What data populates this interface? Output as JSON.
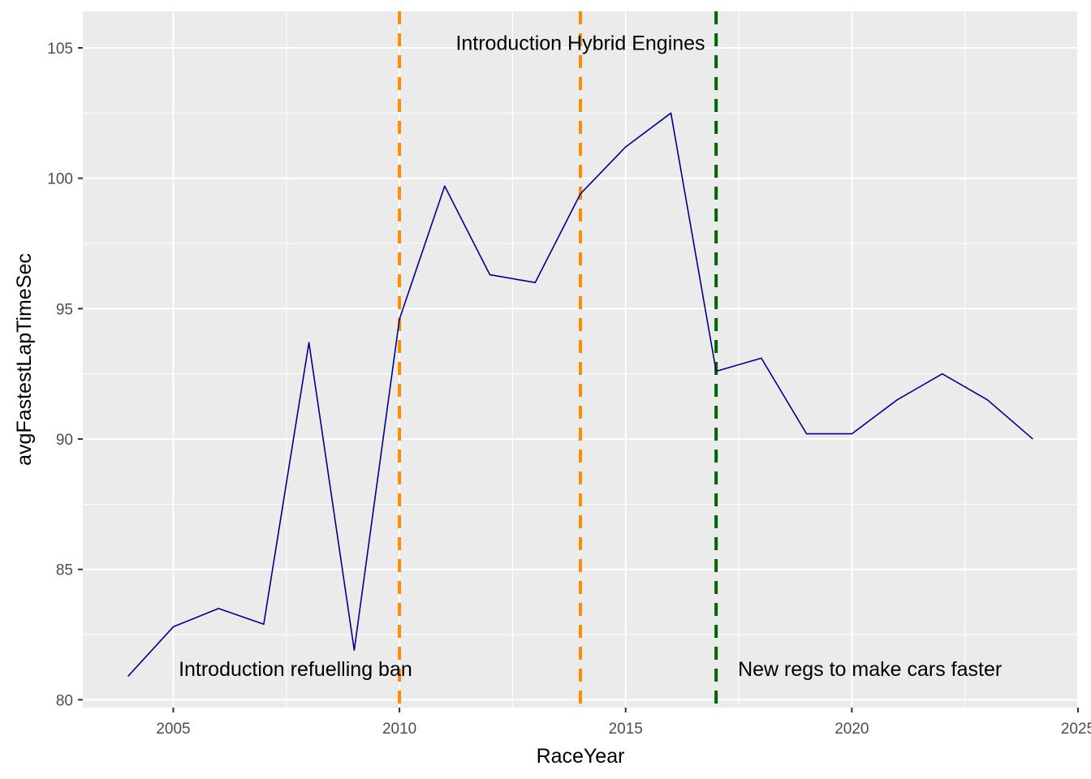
{
  "chart_data": {
    "type": "line",
    "xlabel": "RaceYear",
    "ylabel": "avgFastestLapTimeSec",
    "xlim": [
      2003.0,
      2025.0
    ],
    "ylim": [
      79.7,
      106.4
    ],
    "x_ticks": [
      2005,
      2010,
      2015,
      2020,
      2025
    ],
    "y_ticks": [
      80,
      85,
      90,
      95,
      100,
      105
    ],
    "x_tick_labels": [
      "2005",
      "2010",
      "2015",
      "2020",
      "2025"
    ],
    "y_tick_labels": [
      "80",
      "85",
      "90",
      "95",
      "100",
      "105"
    ],
    "grid": true,
    "legend": "none",
    "series_color": "#00008b",
    "series": [
      {
        "x": [
          2004,
          2005,
          2006,
          2007,
          2008,
          2009,
          2010,
          2011,
          2012,
          2013,
          2014,
          2015,
          2016,
          2017,
          2018,
          2019,
          2020,
          2021,
          2022,
          2023,
          2024
        ],
        "values": [
          80.9,
          82.8,
          83.5,
          82.9,
          93.7,
          81.9,
          94.6,
          99.7,
          96.3,
          96.0,
          99.4,
          101.2,
          102.5,
          92.6,
          93.1,
          90.2,
          90.2,
          91.5,
          92.5,
          91.5,
          90.0
        ]
      }
    ],
    "vlines": [
      {
        "x": 2010,
        "color": "#ff8c00"
      },
      {
        "x": 2014,
        "color": "#ff8c00"
      },
      {
        "x": 2017,
        "color": "#006400"
      }
    ],
    "annotations": [
      {
        "text": "Introduction refuelling ban",
        "x": 2007.7,
        "y": 81.2
      },
      {
        "text": "Introduction Hybrid Engines",
        "x": 2014.0,
        "y": 105.2
      },
      {
        "text": "New regs to make cars faster",
        "x": 2020.4,
        "y": 81.2
      }
    ]
  }
}
